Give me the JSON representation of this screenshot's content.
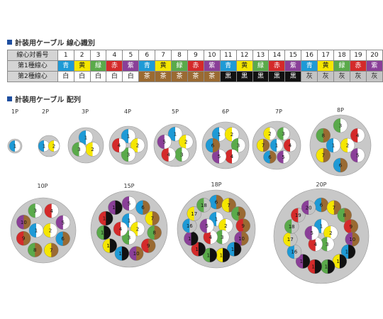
{
  "title1": "計装用ケーブル 線心識別",
  "title2": "計装用ケーブル 配列",
  "table": {
    "row_labels": [
      "線心対番号",
      "第1種線心",
      "第2種線心"
    ],
    "numbers": [
      "1",
      "2",
      "3",
      "4",
      "5",
      "6",
      "7",
      "8",
      "9",
      "10",
      "11",
      "12",
      "13",
      "14",
      "15",
      "16",
      "17",
      "18",
      "19",
      "20"
    ],
    "first": [
      "青",
      "黄",
      "緑",
      "赤",
      "紫",
      "青",
      "黄",
      "緑",
      "赤",
      "紫",
      "青",
      "黄",
      "緑",
      "赤",
      "紫",
      "青",
      "黄",
      "緑",
      "赤",
      "紫"
    ],
    "second": [
      "白",
      "白",
      "白",
      "白",
      "白",
      "茶",
      "茶",
      "茶",
      "茶",
      "茶",
      "黒",
      "黒",
      "黒",
      "黒",
      "黒",
      "灰",
      "灰",
      "灰",
      "灰",
      "灰"
    ]
  },
  "colors": {
    "first": {
      "青": "#1e9ad6",
      "黄": "#f5e600",
      "緑": "#5aaa4a",
      "赤": "#d42a2a",
      "紫": "#8a3f98"
    },
    "second": {
      "白": "#ffffff",
      "茶": "#9a6a32",
      "黒": "#111111",
      "灰": "#c4c4c4"
    },
    "cable_fill": "#c8c8c8",
    "section_marker": "#1f4fa0"
  },
  "cables": [
    {
      "label": "1P",
      "pairs": [
        1
      ]
    },
    {
      "label": "2P",
      "pairs": [
        1,
        2
      ]
    },
    {
      "label": "3P",
      "pairs": [
        1,
        2,
        3
      ]
    },
    {
      "label": "4P",
      "pairs": [
        1,
        2,
        3,
        4
      ]
    },
    {
      "label": "5P",
      "pairs": [
        1,
        2,
        3,
        4,
        5
      ]
    },
    {
      "label": "6P",
      "pairs": [
        1,
        2,
        3,
        4,
        5,
        6
      ]
    },
    {
      "label": "7P",
      "pairs": [
        1,
        2,
        3,
        4,
        5,
        6,
        7
      ]
    },
    {
      "label": "8P",
      "pairs": [
        1,
        2,
        3,
        4,
        5,
        6,
        7,
        8
      ]
    },
    {
      "label": "10P",
      "pairs": [
        1,
        2,
        3,
        4,
        5,
        6,
        7,
        8,
        9,
        10
      ]
    },
    {
      "label": "15P",
      "pairs": [
        1,
        2,
        3,
        4,
        5,
        6,
        7,
        8,
        9,
        10,
        11,
        12,
        13,
        14,
        15
      ]
    },
    {
      "label": "18P",
      "pairs": [
        1,
        2,
        3,
        4,
        5,
        6,
        7,
        8,
        9,
        10,
        11,
        12,
        13,
        14,
        15,
        16,
        17,
        18
      ]
    },
    {
      "label": "20P",
      "pairs": [
        1,
        2,
        3,
        4,
        5,
        6,
        7,
        8,
        9,
        10,
        11,
        12,
        13,
        14,
        15,
        16,
        17,
        18,
        19,
        20
      ]
    }
  ]
}
